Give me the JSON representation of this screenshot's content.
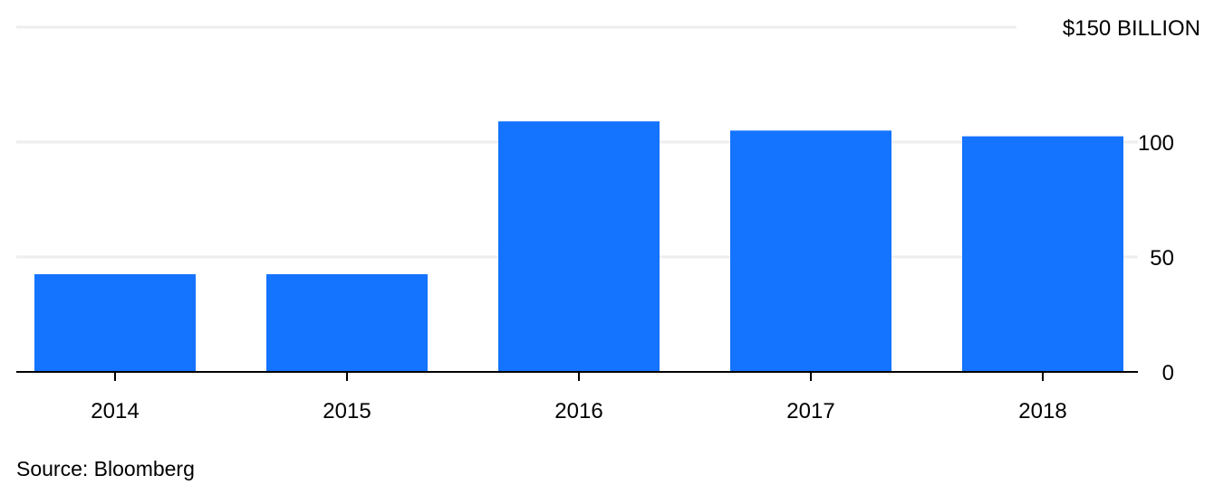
{
  "chart_data": {
    "type": "bar",
    "categories": [
      "2014",
      "2015",
      "2016",
      "2017",
      "2018"
    ],
    "values": [
      42.5,
      42.5,
      109,
      105,
      102.5
    ],
    "ylim": [
      0,
      150
    ],
    "yticks": [
      0,
      50,
      100,
      150
    ],
    "ytick_labels": [
      "0",
      "50",
      "100",
      "$150 BILLION"
    ],
    "grid": true,
    "y_axis_side": "right",
    "bar_color": "#1473ff",
    "grid_color": "#eeeeee",
    "axis_color": "#000000"
  },
  "source": "Source: Bloomberg"
}
